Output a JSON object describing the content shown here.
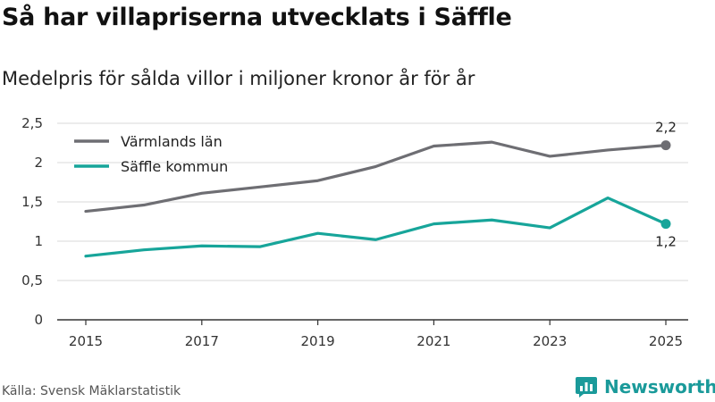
{
  "title": "Så har villapriserna utvecklats i Säffle",
  "subtitle": "Medelpris för sålda villor i miljoner kronor år för år",
  "source": "Källa: Svensk Mäklarstatistik",
  "brand": {
    "name": "Newsworthy",
    "icon": "newsworthy-logo-icon",
    "color": "#1a9a9a"
  },
  "chart_data": {
    "type": "line",
    "x": [
      2015,
      2016,
      2017,
      2018,
      2019,
      2020,
      2021,
      2022,
      2023,
      2024,
      2025
    ],
    "xticks": [
      "2015",
      "2017",
      "2019",
      "2021",
      "2023",
      "2025"
    ],
    "yticks": [
      "0",
      "0,5",
      "1",
      "1,5",
      "2",
      "2,5"
    ],
    "ylim": [
      0,
      2.5
    ],
    "grid": true,
    "legend_position": "top-left",
    "series": [
      {
        "name": "Värmlands län",
        "color": "#6e6e73",
        "values": [
          1.38,
          1.46,
          1.61,
          1.69,
          1.77,
          1.95,
          2.21,
          2.26,
          2.08,
          2.16,
          2.22
        ],
        "end_label": "2,2"
      },
      {
        "name": "Säffle kommun",
        "color": "#17a59a",
        "values": [
          0.81,
          0.89,
          0.94,
          0.93,
          1.1,
          1.02,
          1.22,
          1.27,
          1.17,
          1.55,
          1.22
        ],
        "end_label": "1,2"
      }
    ]
  }
}
